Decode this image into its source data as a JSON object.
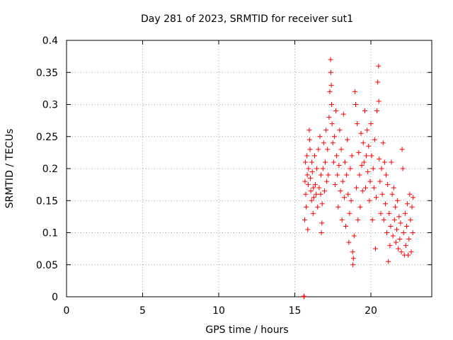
{
  "chart_data": {
    "type": "scatter",
    "title": "Day 281 of 2023, SRMTID for receiver sut1",
    "xlabel": "GPS time / hours",
    "ylabel": "SRMTID / TECUs",
    "xlim": [
      0,
      24
    ],
    "ylim": [
      0,
      0.4
    ],
    "xticks": [
      0,
      5,
      10,
      15,
      20
    ],
    "yticks": [
      0,
      0.05,
      0.1,
      0.15,
      0.2,
      0.25,
      0.3,
      0.35,
      0.4
    ],
    "xtick_labels": [
      "0",
      "5",
      "10",
      "15",
      "20"
    ],
    "ytick_labels": [
      "0",
      "0.05",
      "0.1",
      "0.15",
      "0.2",
      "0.25",
      "0.3",
      "0.35",
      "0.4"
    ],
    "grid": true,
    "marker": "plus",
    "marker_color": "#ff0000",
    "series": [
      {
        "values": [
          [
            15.6,
            0.001
          ],
          [
            15.62,
            0.0
          ],
          [
            15.65,
            0.12
          ],
          [
            15.67,
            0.18
          ],
          [
            15.7,
            0.21
          ],
          [
            15.72,
            0.16
          ],
          [
            15.75,
            0.14
          ],
          [
            15.8,
            0.22
          ],
          [
            15.82,
            0.19
          ],
          [
            15.85,
            0.105
          ],
          [
            15.88,
            0.175
          ],
          [
            15.9,
            0.2
          ],
          [
            15.95,
            0.26
          ],
          [
            15.97,
            0.245
          ],
          [
            16.0,
            0.23
          ],
          [
            16.02,
            0.185
          ],
          [
            16.05,
            0.165
          ],
          [
            16.1,
            0.15
          ],
          [
            16.12,
            0.21
          ],
          [
            16.15,
            0.195
          ],
          [
            16.2,
            0.13
          ],
          [
            16.22,
            0.17
          ],
          [
            16.25,
            0.155
          ],
          [
            16.3,
            0.22
          ],
          [
            16.35,
            0.175
          ],
          [
            16.4,
            0.16
          ],
          [
            16.45,
            0.2
          ],
          [
            16.5,
            0.14
          ],
          [
            16.55,
            0.23
          ],
          [
            16.6,
            0.17
          ],
          [
            16.65,
            0.25
          ],
          [
            16.7,
            0.16
          ],
          [
            16.72,
            0.19
          ],
          [
            16.75,
            0.1
          ],
          [
            16.78,
            0.115
          ],
          [
            16.8,
            0.145
          ],
          [
            16.85,
            0.2
          ],
          [
            16.9,
            0.24
          ],
          [
            16.95,
            0.165
          ],
          [
            17.0,
            0.21
          ],
          [
            17.05,
            0.26
          ],
          [
            17.1,
            0.18
          ],
          [
            17.15,
            0.23
          ],
          [
            17.2,
            0.19
          ],
          [
            17.25,
            0.28
          ],
          [
            17.3,
            0.32
          ],
          [
            17.35,
            0.37
          ],
          [
            17.37,
            0.35
          ],
          [
            17.4,
            0.33
          ],
          [
            17.42,
            0.3
          ],
          [
            17.45,
            0.27
          ],
          [
            17.5,
            0.24
          ],
          [
            17.55,
            0.21
          ],
          [
            17.6,
            0.25
          ],
          [
            17.65,
            0.175
          ],
          [
            17.7,
            0.29
          ],
          [
            17.75,
            0.22
          ],
          [
            17.8,
            0.19
          ],
          [
            17.85,
            0.14
          ],
          [
            17.9,
            0.205
          ],
          [
            17.95,
            0.26
          ],
          [
            18.0,
            0.165
          ],
          [
            18.05,
            0.23
          ],
          [
            18.1,
            0.12
          ],
          [
            18.15,
            0.18
          ],
          [
            18.2,
            0.285
          ],
          [
            18.25,
            0.155
          ],
          [
            18.3,
            0.21
          ],
          [
            18.35,
            0.11
          ],
          [
            18.4,
            0.19
          ],
          [
            18.45,
            0.245
          ],
          [
            18.5,
            0.16
          ],
          [
            18.55,
            0.085
          ],
          [
            18.6,
            0.13
          ],
          [
            18.65,
            0.2
          ],
          [
            18.7,
            0.15
          ],
          [
            18.75,
            0.22
          ],
          [
            18.8,
            0.07
          ],
          [
            18.82,
            0.05
          ],
          [
            18.85,
            0.06
          ],
          [
            18.9,
            0.095
          ],
          [
            18.95,
            0.32
          ],
          [
            19.0,
            0.3
          ],
          [
            19.05,
            0.17
          ],
          [
            19.1,
            0.27
          ],
          [
            19.15,
            0.12
          ],
          [
            19.2,
            0.225
          ],
          [
            19.25,
            0.19
          ],
          [
            19.3,
            0.14
          ],
          [
            19.35,
            0.255
          ],
          [
            19.4,
            0.205
          ],
          [
            19.45,
            0.165
          ],
          [
            19.5,
            0.24
          ],
          [
            19.55,
            0.21
          ],
          [
            19.6,
            0.29
          ],
          [
            19.65,
            0.17
          ],
          [
            19.7,
            0.22
          ],
          [
            19.75,
            0.26
          ],
          [
            19.8,
            0.195
          ],
          [
            19.85,
            0.235
          ],
          [
            19.9,
            0.15
          ],
          [
            19.95,
            0.18
          ],
          [
            20.0,
            0.27
          ],
          [
            20.05,
            0.22
          ],
          [
            20.1,
            0.12
          ],
          [
            20.15,
            0.2
          ],
          [
            20.2,
            0.17
          ],
          [
            20.25,
            0.245
          ],
          [
            20.3,
            0.075
          ],
          [
            20.35,
            0.155
          ],
          [
            20.4,
            0.29
          ],
          [
            20.45,
            0.335
          ],
          [
            20.5,
            0.36
          ],
          [
            20.52,
            0.305
          ],
          [
            20.55,
            0.215
          ],
          [
            20.6,
            0.18
          ],
          [
            20.65,
            0.13
          ],
          [
            20.7,
            0.2
          ],
          [
            20.75,
            0.16
          ],
          [
            20.8,
            0.24
          ],
          [
            20.85,
            0.12
          ],
          [
            20.9,
            0.21
          ],
          [
            20.95,
            0.145
          ],
          [
            21.0,
            0.19
          ],
          [
            21.05,
            0.1
          ],
          [
            21.1,
            0.175
          ],
          [
            21.15,
            0.055
          ],
          [
            21.2,
            0.13
          ],
          [
            21.25,
            0.08
          ],
          [
            21.3,
            0.11
          ],
          [
            21.35,
            0.21
          ],
          [
            21.4,
            0.16
          ],
          [
            21.45,
            0.095
          ],
          [
            21.5,
            0.17
          ],
          [
            21.55,
            0.12
          ],
          [
            21.6,
            0.14
          ],
          [
            21.65,
            0.085
          ],
          [
            21.7,
            0.105
          ],
          [
            21.75,
            0.15
          ],
          [
            21.8,
            0.075
          ],
          [
            21.85,
            0.125
          ],
          [
            21.9,
            0.09
          ],
          [
            21.95,
            0.115
          ],
          [
            22.0,
            0.07
          ],
          [
            22.05,
            0.23
          ],
          [
            22.1,
            0.2
          ],
          [
            22.15,
            0.1
          ],
          [
            22.2,
            0.065
          ],
          [
            22.25,
            0.13
          ],
          [
            22.3,
            0.08
          ],
          [
            22.35,
            0.11
          ],
          [
            22.4,
            0.145
          ],
          [
            22.45,
            0.065
          ],
          [
            22.5,
            0.09
          ],
          [
            22.55,
            0.16
          ],
          [
            22.6,
            0.12
          ],
          [
            22.65,
            0.07
          ],
          [
            22.7,
            0.14
          ],
          [
            22.75,
            0.1
          ],
          [
            22.78,
            0.155
          ]
        ]
      }
    ]
  }
}
